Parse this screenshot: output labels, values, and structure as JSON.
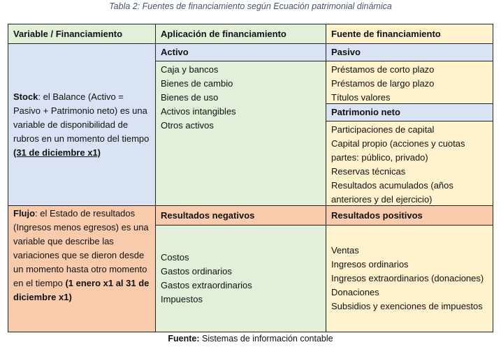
{
  "caption": "Tabla 2: Fuentes de financiamiento según Ecuación patrimonial dinámica",
  "headers": [
    "Variable / Financiamiento",
    "Aplicación de financiamiento",
    "Fuente de financiamiento"
  ],
  "stock": {
    "label": "Stock",
    "text": ": el Balance (Activo = Pasivo + Patrimonio neto) es una variable de disponibilidad de rubros en un momento del tiempo ",
    "date": "(31 de diciembre x1)",
    "activo": {
      "title": "Activo",
      "items": [
        "Caja y bancos",
        "Bienes de cambio",
        "Bienes de uso",
        "Activos intangibles",
        "Otros activos"
      ]
    },
    "pasivo": {
      "title": "Pasivo",
      "items": [
        "Préstamos de corto plazo",
        "Préstamos de largo plazo",
        "Títulos valores"
      ]
    },
    "patrimonio": {
      "title": "Patrimonio neto",
      "items": [
        "Participaciones de capital",
        "Capital propio (acciones y cuotas partes: público, privado)",
        "Reservas técnicas",
        "Resultados acumulados (años anteriores y del ejercicio)"
      ]
    }
  },
  "flujo": {
    "label": "Flujo",
    "text": ": el Estado de resultados (Ingresos menos egresos) es una variable que describe las variaciones que se dieron desde un momento hasta otro momento en el tiempo ",
    "date": "(1 enero x1 al 31 de diciembre x1)",
    "negativos": {
      "title": "Resultados negativos",
      "items": [
        "Costos",
        "Gastos ordinarios",
        "Gastos extraordinarios",
        "Impuestos"
      ]
    },
    "positivos": {
      "title": "Resultados positivos",
      "items": [
        "Ventas",
        "Ingresos ordinarios",
        "Ingresos extraordinarios (donaciones)",
        "Donaciones",
        "Subsidios y exenciones de impuestos"
      ]
    }
  },
  "footer": {
    "label": "Fuente:",
    "text": " Sistemas de información contable"
  },
  "colors": {
    "green": "#e2efd9",
    "yellow": "#fff2cc",
    "blue": "#dae3f3",
    "peach": "#f8cbad"
  }
}
